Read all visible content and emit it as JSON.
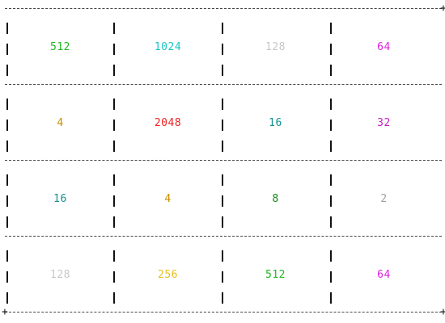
{
  "board": {
    "rows": [
      [
        {
          "value": "512",
          "color": "#22b822"
        },
        {
          "value": "1024",
          "color": "#19c4c4"
        },
        {
          "value": "128",
          "color": "#c8c8c8"
        },
        {
          "value": "64",
          "color": "#e020e0"
        }
      ],
      [
        {
          "value": "4",
          "color": "#c89000"
        },
        {
          "value": "2048",
          "color": "#f02020"
        },
        {
          "value": "16",
          "color": "#118f8f"
        },
        {
          "value": "32",
          "color": "#c020c0"
        }
      ],
      [
        {
          "value": "16",
          "color": "#118f8f"
        },
        {
          "value": "4",
          "color": "#c89000"
        },
        {
          "value": "8",
          "color": "#118811"
        },
        {
          "value": "2",
          "color": "#a0a0a0"
        }
      ],
      [
        {
          "value": "128",
          "color": "#c8c8c8"
        },
        {
          "value": "256",
          "color": "#e8c020"
        },
        {
          "value": "512",
          "color": "#22b822"
        },
        {
          "value": "64",
          "color": "#e020e0"
        }
      ]
    ]
  },
  "border": {
    "corner_glyph": "+",
    "separator_glyph": "|"
  }
}
